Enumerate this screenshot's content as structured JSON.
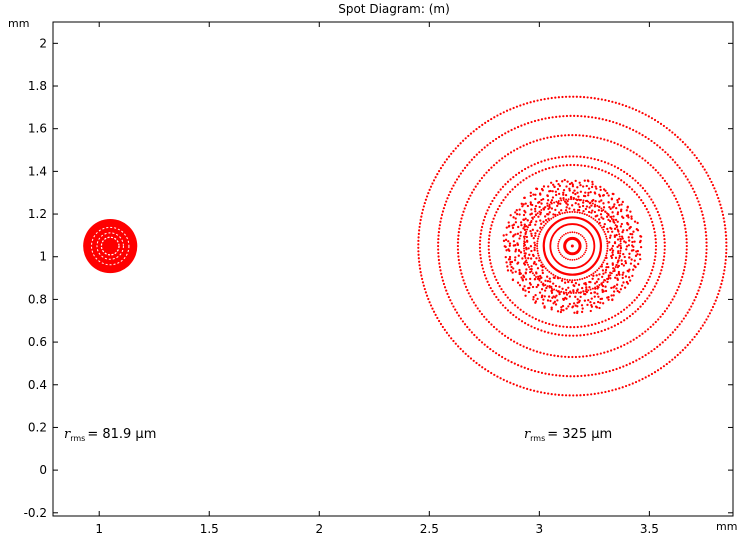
{
  "chart_data": {
    "type": "scatter",
    "title": "Spot Diagram: (m)",
    "xunit": "mm",
    "yunit": "mm",
    "xlim": [
      0.79,
      3.88
    ],
    "ylim": [
      -0.215,
      2.1
    ],
    "xticks": [
      1,
      1.5,
      2,
      2.5,
      3,
      3.5
    ],
    "yticks": [
      -0.2,
      0,
      0.2,
      0.4,
      0.6,
      0.8,
      1,
      1.2,
      1.4,
      1.6,
      1.8,
      2
    ],
    "ytick_labels": [
      "-0.2",
      "0",
      "0.2",
      "0.4",
      "0.6",
      "0.8",
      "1",
      "1.2",
      "1.4",
      "1.6",
      "1.8",
      "2"
    ],
    "grid": false,
    "point_color": "#ff0000",
    "spots": [
      {
        "center": [
          1.05,
          1.05
        ],
        "disk_radius": 0.123,
        "white_rings": [
          0.085,
          0.06
        ],
        "inner_ring": 0.04,
        "annotation": {
          "symbol": "r",
          "subscript": "rms",
          "value": "= 81.9 µm",
          "position": [
            0.84,
            0.15
          ]
        }
      },
      {
        "center": [
          3.15,
          1.05
        ],
        "dotted_rings": [
          0.7,
          0.61,
          0.52,
          0.42,
          0.38
        ],
        "scatter_band": [
          0.175,
          0.305
        ],
        "solid_rings": [
          0.13,
          0.1
        ],
        "thin_rings": [
          0.22,
          0.16
        ],
        "core_ring": 0.035,
        "annotation": {
          "symbol": "r",
          "subscript": "rms",
          "value": "= 325 µm",
          "position": [
            2.93,
            0.15
          ]
        }
      }
    ]
  }
}
